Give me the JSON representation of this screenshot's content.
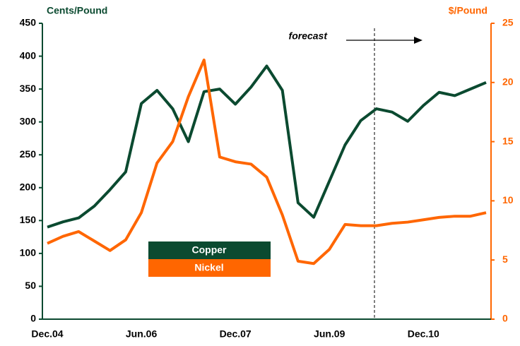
{
  "chart_data": {
    "type": "line",
    "annotation": "forecast",
    "y_label": "Cents/Pound",
    "y2_label": "$/Pound",
    "categories": [
      "Dec.04",
      null,
      null,
      null,
      null,
      null,
      "Jun.06",
      null,
      null,
      null,
      null,
      null,
      "Dec.07",
      null,
      null,
      null,
      null,
      null,
      "Jun.09",
      null,
      null,
      null,
      null,
      null,
      "Dec.10",
      null,
      null,
      null,
      null
    ],
    "series": [
      {
        "name": "Copper",
        "color": "#0b4a30",
        "values": [
          140,
          148,
          154,
          172,
          197,
          224,
          328,
          348,
          320,
          270,
          346,
          350,
          327,
          353,
          385,
          348,
          177,
          155,
          210,
          265,
          302,
          320,
          315,
          301,
          325,
          345,
          340,
          350,
          360
        ]
      },
      {
        "name": "Nickel",
        "color": "#ff6600",
        "axis": "y2",
        "values": [
          6.4,
          7.0,
          7.4,
          6.6,
          5.8,
          6.7,
          9.0,
          13.2,
          15.0,
          18.8,
          21.9,
          13.7,
          13.3,
          13.1,
          12.0,
          8.8,
          4.9,
          4.7,
          5.9,
          8.0,
          7.9,
          7.9,
          8.1,
          8.2,
          8.4,
          8.6,
          8.7,
          8.7,
          9.0
        ]
      }
    ],
    "ylim": [
      0,
      450
    ],
    "yticks": [
      0,
      50,
      100,
      150,
      200,
      250,
      300,
      350,
      400,
      450
    ],
    "y2lim": [
      0,
      25
    ],
    "y2ticks": [
      0,
      5,
      10,
      15,
      20,
      25
    ]
  }
}
